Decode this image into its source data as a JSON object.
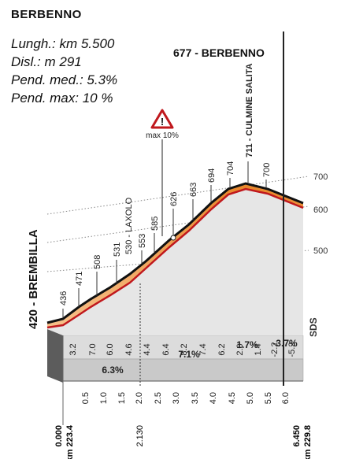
{
  "title": "BERBENNO",
  "info": {
    "length": "Lungh.: km 5.500",
    "climb": "Disl.: m 291",
    "avg_grade": "Pend. med.: 5.3%",
    "max_grade": "Pend. max: 10 %"
  },
  "summit_label": "677 - BERBENNO",
  "start_label": "420 - BREMBILLA",
  "warning": {
    "label": "max 10%"
  },
  "altitude_scale": [
    "700",
    "600",
    "500"
  ],
  "sds_label": "SDS",
  "km_start": {
    "km": "0.000",
    "total": "km 223.4"
  },
  "km_mid": "2.130",
  "km_end": {
    "km": "6.450",
    "total": "km 229.8"
  },
  "chart_data": {
    "type": "area",
    "x_ticks": [
      "0.5",
      "1.0",
      "1.5",
      "2.0",
      "2.5",
      "3.0",
      "3.5",
      "4.0",
      "4.5",
      "5.0",
      "5.5",
      "6.0"
    ],
    "segment_grades": [
      "3.2",
      "7.0",
      "6.0",
      "4.6",
      "4.4",
      "6.4",
      "8.2",
      "7.4",
      "6.2",
      "2.0",
      "1.4",
      "-2.2",
      "-5.2"
    ],
    "sector_grades": [
      "6.3%",
      "7.1%",
      "1.7%",
      "-3.7%"
    ],
    "peak_altitudes": [
      {
        "km": 0.0,
        "alt": "436"
      },
      {
        "km": 0.5,
        "alt": "471"
      },
      {
        "km": 1.5,
        "alt": "508"
      },
      {
        "km": 2.0,
        "alt": "531"
      },
      {
        "km": 2.0,
        "alt": "530 - LAXOLO"
      },
      {
        "km": 2.2,
        "alt": "553"
      },
      {
        "km": 3.0,
        "alt": "585"
      },
      {
        "km": 3.5,
        "alt": "626"
      },
      {
        "km": 4.0,
        "alt": "663"
      },
      {
        "km": 4.5,
        "alt": "694"
      },
      {
        "km": 5.0,
        "alt": "704"
      },
      {
        "km": 5.5,
        "alt": "711 - CULMINE SALITA"
      },
      {
        "km": 6.0,
        "alt": "700"
      }
    ],
    "ylim": [
      420,
      711
    ]
  }
}
